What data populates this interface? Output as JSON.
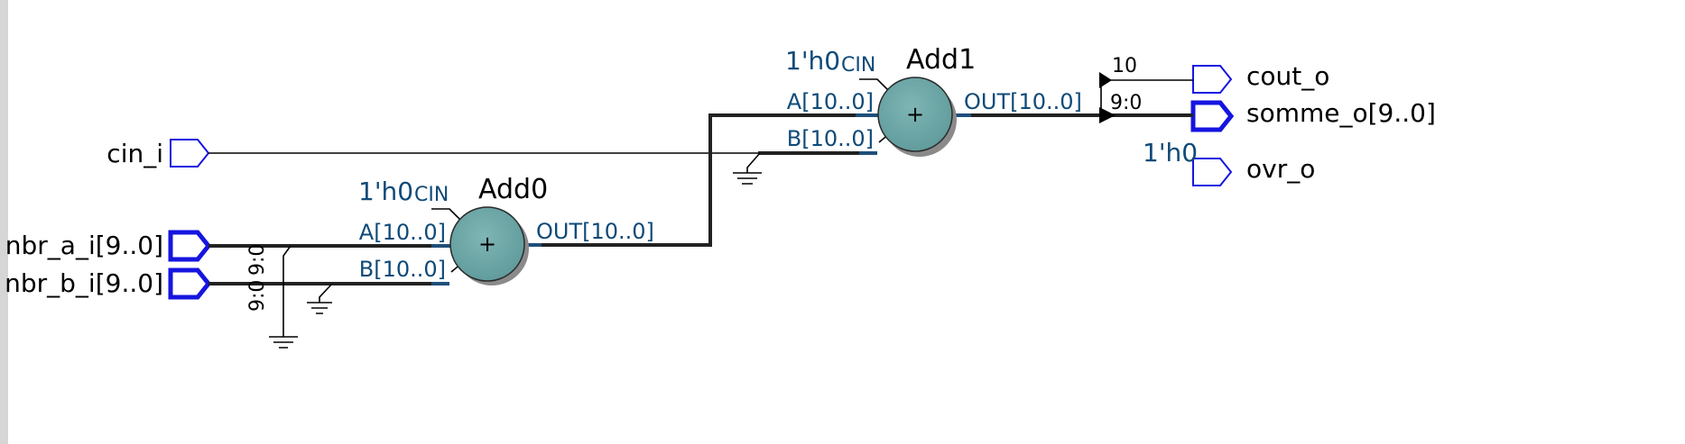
{
  "ports": {
    "cin_i": "cin_i",
    "nbr_a_i": "nbr_a_i[9..0]",
    "nbr_b_i": "nbr_b_i[9..0]",
    "cout_o": "cout_o",
    "somme_o": "somme_o[9..0]",
    "ovr_o": "ovr_o"
  },
  "adders": {
    "add0": {
      "name": "Add0",
      "in_a": "A[10..0]",
      "in_b": "B[10..0]",
      "out": "OUT[10..0]",
      "cin_const": "1'h0",
      "cin_label": "CIN",
      "symbol": "+"
    },
    "add1": {
      "name": "Add1",
      "in_a": "A[10..0]",
      "in_b": "B[10..0]",
      "out": "OUT[10..0]",
      "cin_const": "1'h0",
      "cin_label": "CIN",
      "symbol": "+"
    }
  },
  "bus_slices": {
    "a_slice": "9:0",
    "b_slice": "9:0",
    "cout_bit": "10",
    "somme_slice": "9:0"
  },
  "constants": {
    "ovr_const": "1'h0"
  },
  "colors": {
    "port_outline": "#1515e0",
    "adder_fill": "#6fa8a8",
    "pin_label": "#0f4a78",
    "wire": "#000000"
  }
}
